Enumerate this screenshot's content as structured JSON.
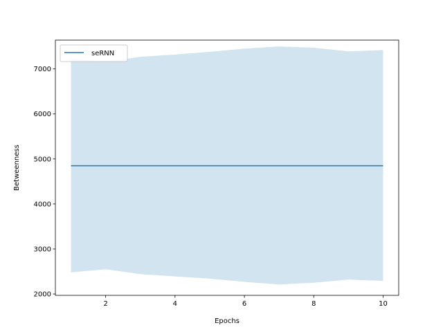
{
  "chart_data": {
    "type": "line",
    "xlabel": "Epochs",
    "ylabel": "Betweenness",
    "xlim": [
      0.55,
      10.45
    ],
    "ylim": [
      1970,
      7640
    ],
    "xticks": [
      2,
      4,
      6,
      8,
      10
    ],
    "yticks": [
      2000,
      3000,
      4000,
      5000,
      6000,
      7000
    ],
    "legend_position": "top-left",
    "grid": false,
    "x": [
      1,
      2,
      3,
      4,
      5,
      6,
      7,
      8,
      9,
      10
    ],
    "series": [
      {
        "name": "seRNN",
        "color": "#1f77b4",
        "band_color": "#1f77b4",
        "values": [
          4850,
          4850,
          4850,
          4850,
          4850,
          4850,
          4850,
          4850,
          4850,
          4850
        ],
        "upper": [
          7230,
          7160,
          7270,
          7320,
          7380,
          7450,
          7500,
          7470,
          7390,
          7420
        ],
        "lower": [
          2480,
          2550,
          2440,
          2390,
          2340,
          2270,
          2210,
          2250,
          2320,
          2290
        ]
      }
    ]
  }
}
